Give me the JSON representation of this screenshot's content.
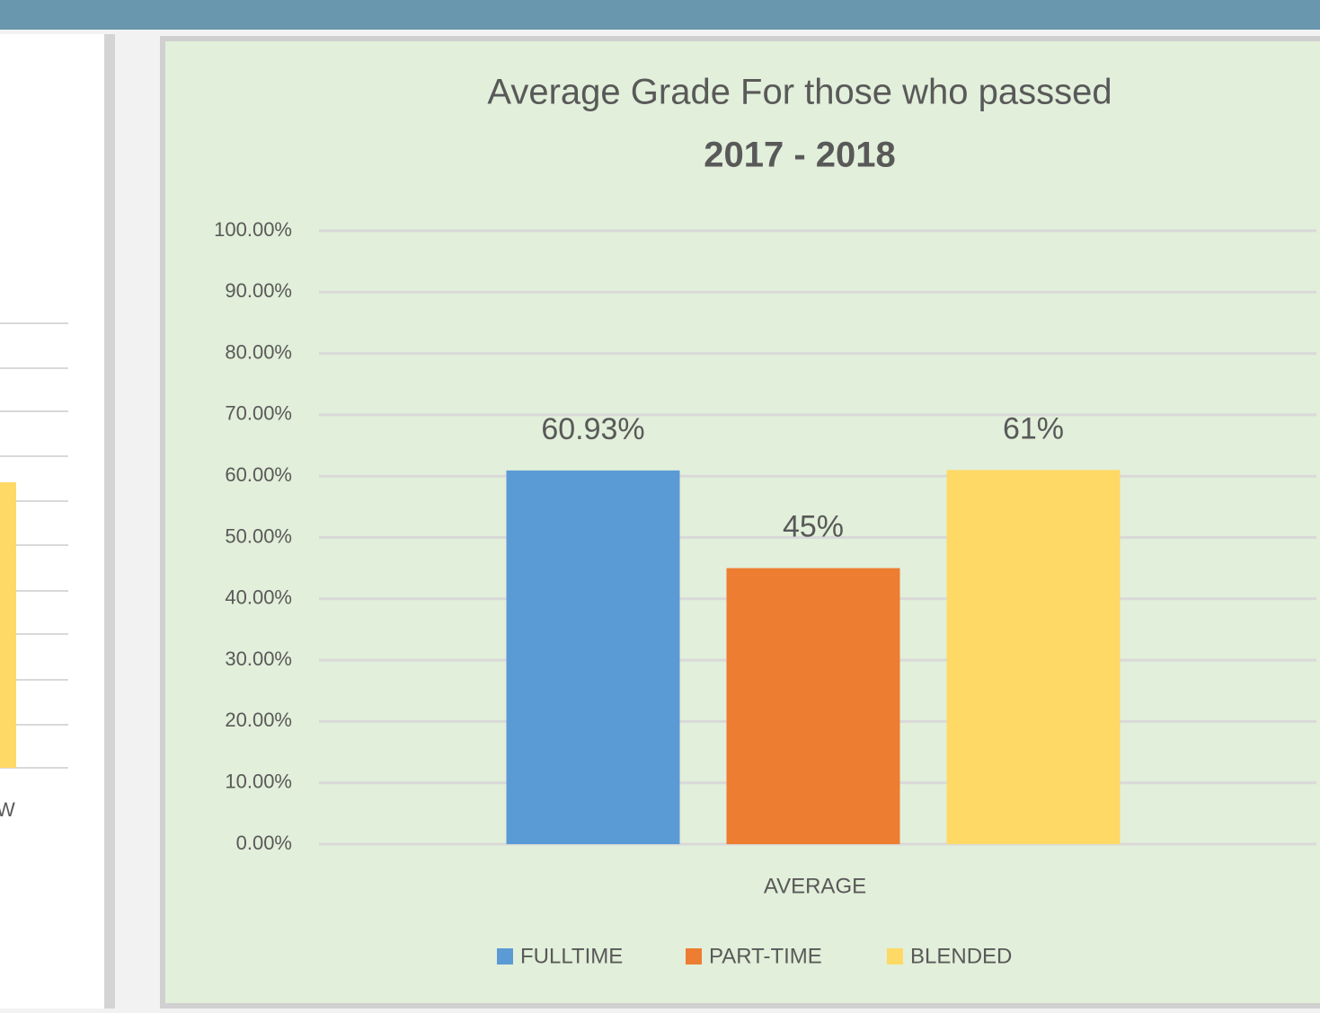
{
  "chart_data": {
    "type": "bar",
    "title": "Average Grade For those who passsed",
    "subtitle": "2017 - 2018",
    "categories": [
      "AVERAGE"
    ],
    "series": [
      {
        "name": "FULLTIME",
        "color": "#5b9bd5",
        "values": [
          60.93
        ],
        "value_labels": [
          "60.93%"
        ]
      },
      {
        "name": "PART-TIME",
        "color": "#ed7d31",
        "values": [
          45
        ],
        "value_labels": [
          "45%"
        ]
      },
      {
        "name": "BLENDED",
        "color": "#ffd966",
        "values": [
          61
        ],
        "value_labels": [
          "61%"
        ]
      }
    ],
    "ylim": [
      0,
      100
    ],
    "yticks": [
      {
        "value": 0,
        "label": "0.00%"
      },
      {
        "value": 10,
        "label": "10.00%"
      },
      {
        "value": 20,
        "label": "20.00%"
      },
      {
        "value": 30,
        "label": "30.00%"
      },
      {
        "value": 40,
        "label": "40.00%"
      },
      {
        "value": 50,
        "label": "50.00%"
      },
      {
        "value": 60,
        "label": "60.00%"
      },
      {
        "value": 70,
        "label": "70.00%"
      },
      {
        "value": 80,
        "label": "80.00%"
      },
      {
        "value": 90,
        "label": "90.00%"
      },
      {
        "value": 100,
        "label": "100.00%"
      }
    ],
    "grid": true,
    "legend": "bottom"
  },
  "side_panel": {
    "label": "W"
  }
}
